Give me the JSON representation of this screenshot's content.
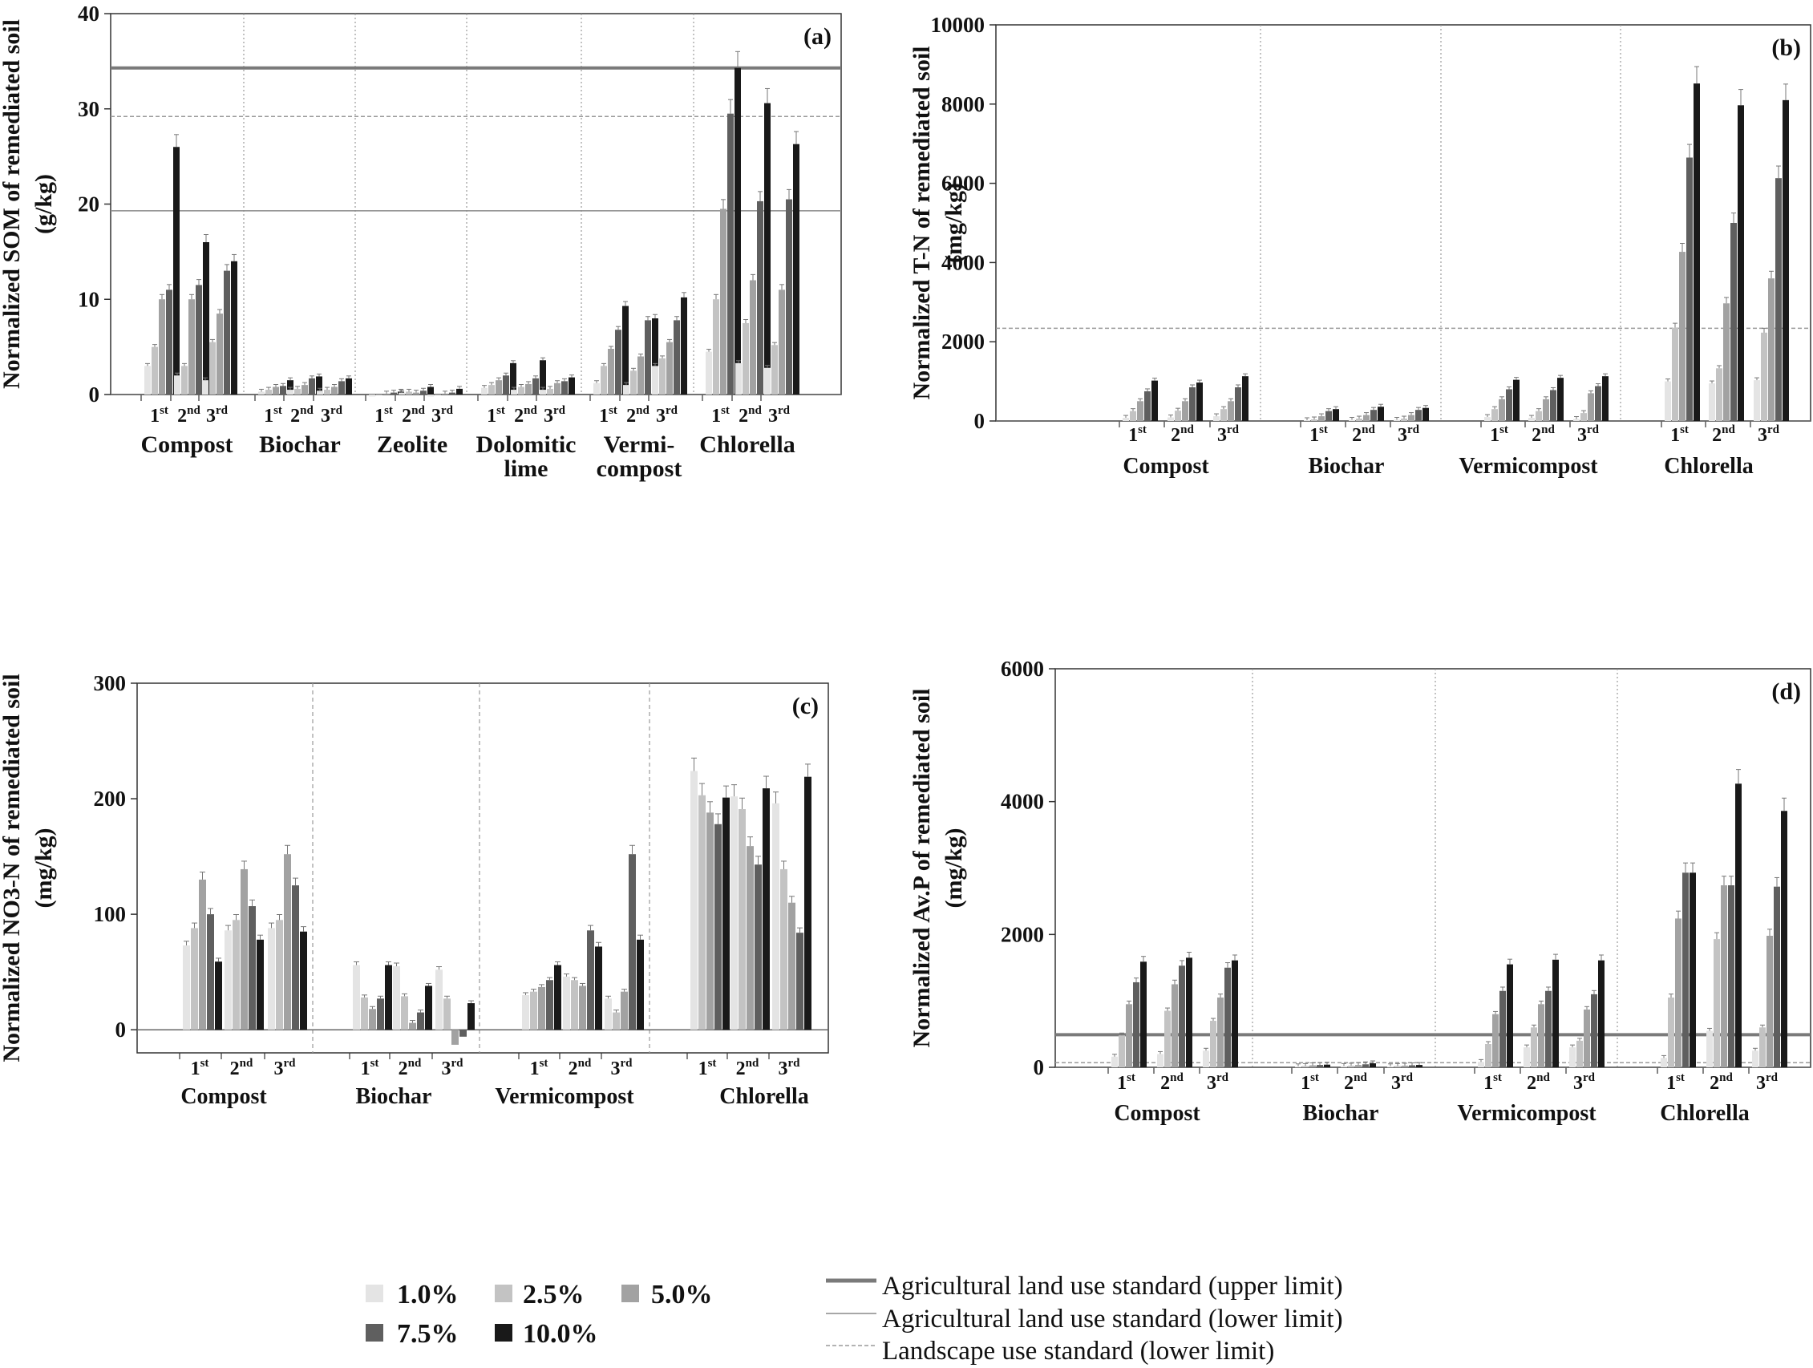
{
  "colors": {
    "series": [
      "#e4e4e4",
      "#c3c3c3",
      "#a2a2a2",
      "#5f5f5f",
      "#191919"
    ],
    "upper": "#7a7a7a",
    "lower": "#8a8a8a",
    "landscape": "#9a9a9a"
  },
  "legend": {
    "series": [
      "1.0%",
      "2.5%",
      "5.0%",
      "7.5%",
      "10.0%"
    ],
    "lines": [
      "Agricultural  land use standard (upper limit)",
      "Agricultural  land use standard (lower limit)",
      "Landscape use standard (lower limit)"
    ]
  },
  "chart_data": [
    {
      "id": "a",
      "type": "bar",
      "panel_label": "(a)",
      "ylabel_line1": "Normalized SOM of remediated soil",
      "ylabel_line2": "(g/kg)",
      "ylim": [
        0,
        40
      ],
      "yticks": [
        "0",
        "10",
        "20",
        "30",
        "40"
      ],
      "series_names": [
        "1.0%",
        "2.5%",
        "5.0%",
        "7.5%",
        "10.0%"
      ],
      "rounds": [
        "1st",
        "2nd",
        "3rd"
      ],
      "round_nums": [
        "1",
        "2",
        "3"
      ],
      "round_sups": [
        "st",
        "nd",
        "rd"
      ],
      "standards": {
        "upper": 34.3,
        "lower": 19.3,
        "landscape": 29.2
      },
      "groups": [
        {
          "label": [
            "Compost"
          ],
          "values": [
            [
              3,
              5,
              10,
              11,
              26
            ],
            [
              2,
              3,
              10,
              11.5,
              16
            ],
            [
              1.5,
              5.5,
              8.5,
              13,
              14
            ]
          ]
        },
        {
          "label": [
            "Biochar"
          ],
          "values": [
            [
              0.3,
              0.5,
              0.8,
              0.9,
              1.5
            ],
            [
              0.5,
              0.6,
              1,
              1.7,
              1.9
            ],
            [
              0.4,
              0.5,
              0.8,
              1.4,
              1.7
            ]
          ]
        },
        {
          "label": [
            "Zeolite"
          ],
          "values": [
            [
              -0.2,
              -0.1,
              0.1,
              0.2,
              0.3
            ],
            [
              0.2,
              0.3,
              0.2,
              0.4,
              0.8
            ],
            [
              -0.2,
              -0.1,
              0.1,
              0.2,
              0.6
            ]
          ]
        },
        {
          "label": [
            "Dolomitic",
            "lime"
          ],
          "values": [
            [
              0.7,
              1,
              1.5,
              2,
              3.3
            ],
            [
              0.5,
              0.8,
              1.1,
              1.7,
              3.6
            ],
            [
              0.5,
              0.6,
              1.2,
              1.4,
              1.8
            ]
          ]
        },
        {
          "label": [
            "Vermi-",
            "compost"
          ],
          "values": [
            [
              1.2,
              3,
              4.8,
              6.8,
              9.3
            ],
            [
              1,
              2.5,
              4,
              7.8,
              8
            ],
            [
              3,
              3.8,
              5.5,
              7.8,
              10.2
            ]
          ]
        },
        {
          "label": [
            "Chlorella"
          ],
          "values": [
            [
              4.5,
              10,
              19.5,
              29.5,
              34.3
            ],
            [
              3.3,
              7.5,
              12,
              20.3,
              30.6
            ],
            [
              2.8,
              5.2,
              11,
              20.5,
              26.3
            ]
          ]
        }
      ]
    },
    {
      "id": "b",
      "type": "bar",
      "panel_label": "(b)",
      "ylabel_line1": "Normalized T-N of remediated soil",
      "ylabel_line2": "(mg/kg)",
      "ylim": [
        0,
        10000
      ],
      "yticks": [
        "0",
        "2000",
        "4000",
        "6000",
        "8000",
        "10000"
      ],
      "series_names": [
        "1.0%",
        "2.5%",
        "5.0%",
        "7.5%",
        "10.0%"
      ],
      "rounds": [
        "1st",
        "2nd",
        "3rd"
      ],
      "round_nums": [
        "1",
        "2",
        "3"
      ],
      "round_sups": [
        "st",
        "nd",
        "rd"
      ],
      "standards": {
        "landscape": 2340
      },
      "groups": [
        {
          "label": [
            "Compost"
          ],
          "values": [
            [
              80,
              250,
              500,
              750,
              1020
            ],
            [
              90,
              260,
              500,
              850,
              970
            ],
            [
              120,
              300,
              500,
              850,
              1130
            ]
          ]
        },
        {
          "label": [
            "Biochar"
          ],
          "values": [
            [
              20,
              40,
              120,
              250,
              300
            ],
            [
              30,
              60,
              150,
              280,
              360
            ],
            [
              30,
              60,
              150,
              280,
              330
            ]
          ]
        },
        {
          "label": [
            "Vermicompost"
          ],
          "values": [
            [
              100,
              300,
              550,
              800,
              1040
            ],
            [
              80,
              250,
              550,
              780,
              1090
            ],
            [
              50,
              200,
              700,
              880,
              1130
            ]
          ]
        },
        {
          "label": [
            "Chlorella"
          ],
          "values": [
            [
              1000,
              2350,
              4270,
              6650,
              8520
            ],
            [
              950,
              1330,
              2970,
              5000,
              7970
            ],
            [
              1030,
              2230,
              3600,
              6130,
              8100
            ]
          ]
        }
      ]
    },
    {
      "id": "c",
      "type": "bar",
      "panel_label": "(c)",
      "ylabel_line1": "Normalized NO3-N of remediated soil",
      "ylabel_line2": "(mg/kg)",
      "ylim": [
        -20,
        300
      ],
      "yticks": [
        "0",
        "100",
        "200",
        "300"
      ],
      "series_names": [
        "1.0%",
        "2.5%",
        "5.0%",
        "7.5%",
        "10.0%"
      ],
      "rounds": [
        "1st",
        "2nd",
        "3rd"
      ],
      "round_nums": [
        "1",
        "2",
        "3"
      ],
      "round_sups": [
        "st",
        "nd",
        "rd"
      ],
      "standards": {},
      "groups": [
        {
          "label": [
            "Compost"
          ],
          "values": [
            [
              73,
              88,
              130,
              100,
              59
            ],
            [
              86,
              95,
              139,
              107,
              78
            ],
            [
              88,
              95,
              152,
              125,
              85
            ]
          ]
        },
        {
          "label": [
            "Biochar"
          ],
          "values": [
            [
              56,
              28,
              18,
              27,
              56
            ],
            [
              55,
              29,
              6,
              15,
              38
            ],
            [
              52,
              27,
              -13,
              -6,
              23
            ]
          ]
        },
        {
          "label": [
            "Vermicompost"
          ],
          "values": [
            [
              30,
              33,
              37,
              43,
              56
            ],
            [
              46,
              43,
              38,
              86,
              72
            ],
            [
              27,
              15,
              33,
              152,
              78
            ]
          ]
        },
        {
          "label": [
            "Chlorella"
          ],
          "values": [
            [
              224,
              203,
              188,
              178,
              201
            ],
            [
              202,
              191,
              159,
              143,
              209
            ],
            [
              196,
              139,
              110,
              84,
              219
            ]
          ]
        }
      ]
    },
    {
      "id": "d",
      "type": "bar",
      "panel_label": "(d)",
      "ylabel_line1": "Normalized Av.P of remediated soil",
      "ylabel_line2": "(mg/kg)",
      "ylim": [
        0,
        6000
      ],
      "yticks": [
        "0",
        "2000",
        "4000",
        "6000"
      ],
      "series_names": [
        "1.0%",
        "2.5%",
        "5.0%",
        "7.5%",
        "10.0%"
      ],
      "rounds": [
        "1st",
        "2nd",
        "3rd"
      ],
      "round_nums": [
        "1",
        "2",
        "3"
      ],
      "round_sups": [
        "st",
        "nd",
        "rd"
      ],
      "standards": {
        "upper": 490,
        "landscape": 70
      },
      "groups": [
        {
          "label": [
            "Compost"
          ],
          "values": [
            [
              160,
              480,
              950,
              1280,
              1590
            ],
            [
              200,
              850,
              1250,
              1530,
              1650
            ],
            [
              250,
              700,
              1050,
              1500,
              1610
            ]
          ]
        },
        {
          "label": [
            "Biochar"
          ],
          "values": [
            [
              15,
              20,
              30,
              35,
              40
            ],
            [
              20,
              25,
              35,
              45,
              60
            ],
            [
              15,
              20,
              25,
              30,
              35
            ]
          ]
        },
        {
          "label": [
            "Vermicompost"
          ],
          "values": [
            [
              80,
              350,
              800,
              1150,
              1550
            ],
            [
              300,
              600,
              950,
              1150,
              1620
            ],
            [
              300,
              400,
              870,
              1100,
              1610
            ]
          ]
        },
        {
          "label": [
            "Chlorella"
          ],
          "values": [
            [
              140,
              1050,
              2240,
              2930,
              2930
            ],
            [
              550,
              1930,
              2740,
              2740,
              4270
            ],
            [
              250,
              600,
              1980,
              2720,
              3860
            ]
          ]
        }
      ]
    }
  ]
}
